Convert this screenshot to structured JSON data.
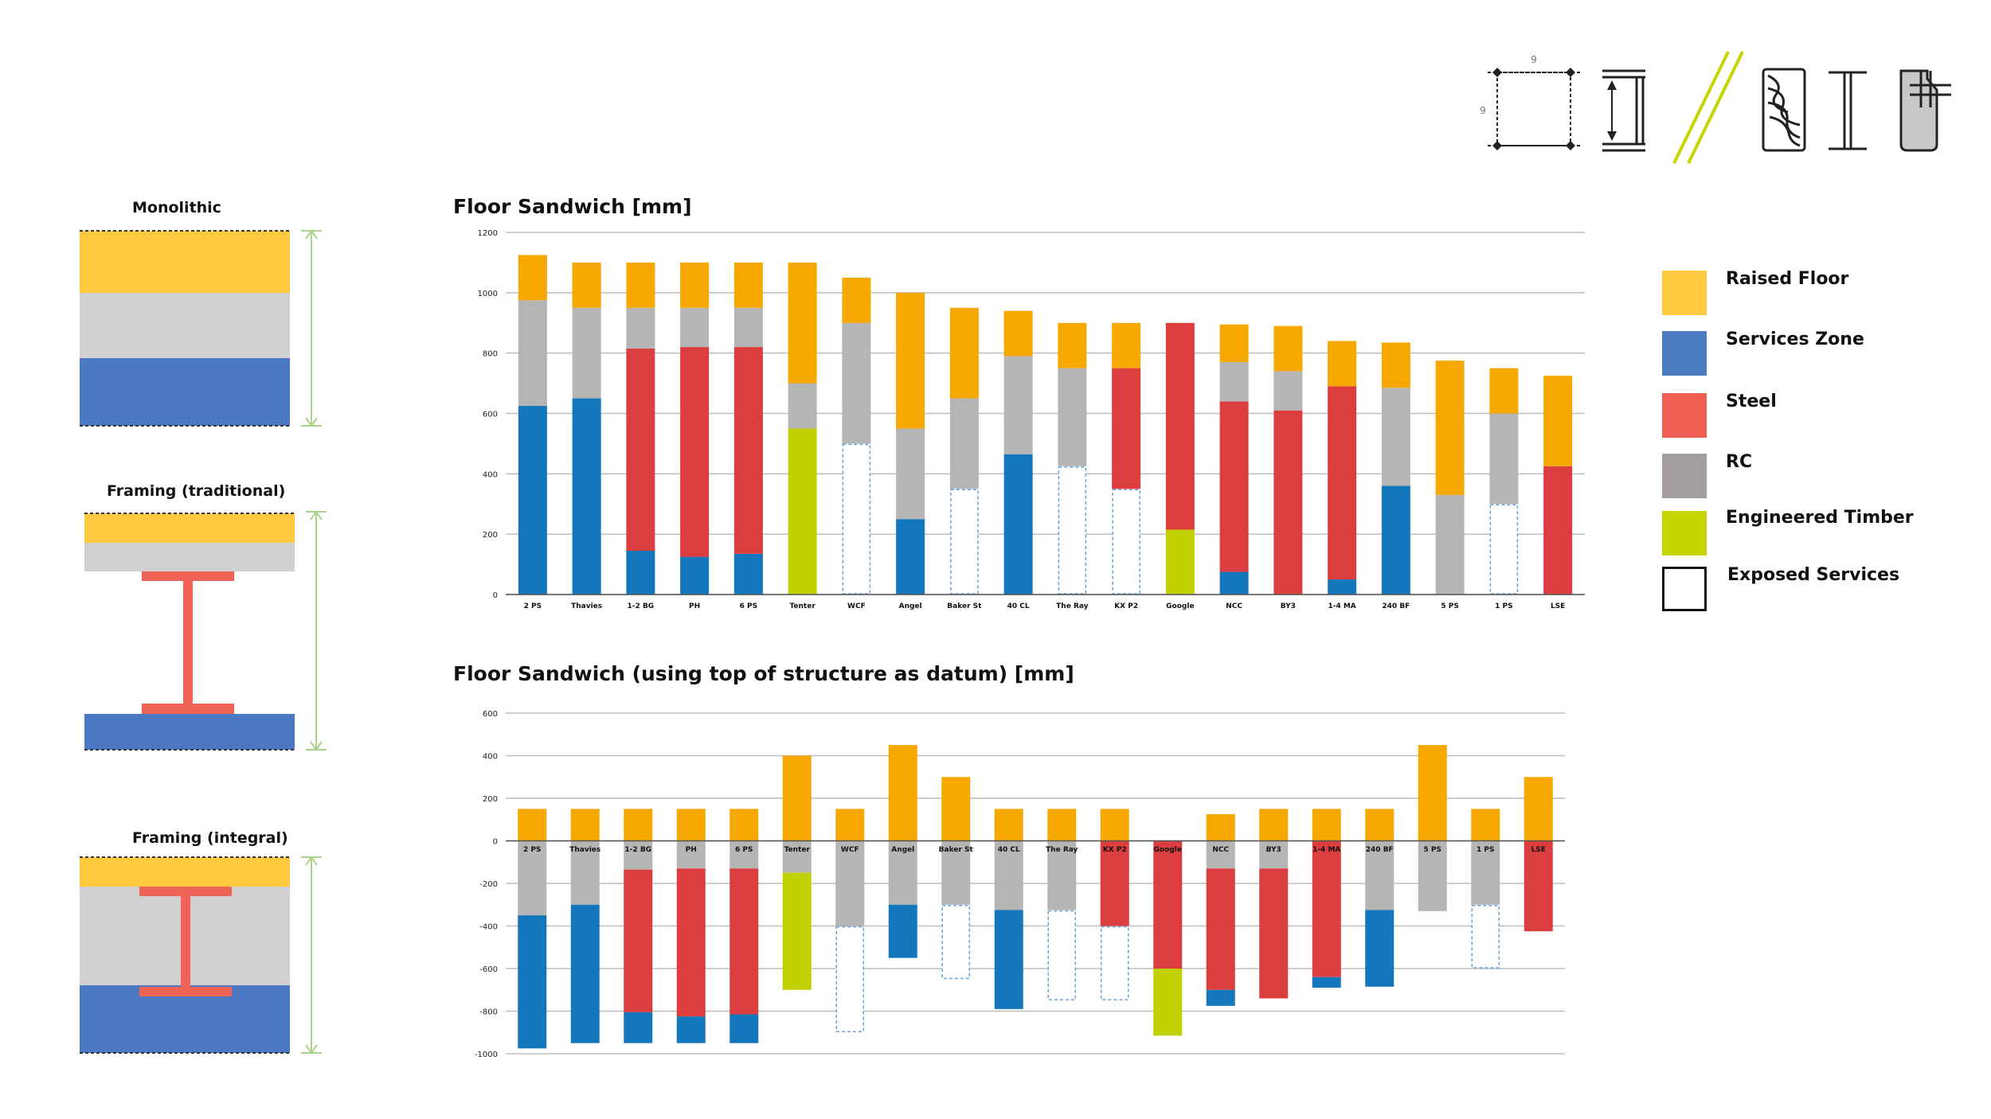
{
  "colors": {
    "raised_floor": "#f6a800",
    "services": "#1577bb",
    "steel": "#dc3d3f",
    "rc": "#b5b5b5",
    "timber": "#c1d000",
    "exposed_stroke": "#6aa0d8",
    "grid": "#bdbdbd",
    "legend_raised": "#fdc93e",
    "legend_services": "#4a7cc1",
    "legend_steel": "#ee5e52",
    "legend_rc": "#a39d9e",
    "legend_timber": "#c6d400",
    "diag_yellow": "#fdc93e",
    "diag_grey": "#d0d0d0",
    "diag_blue": "#4a78c2",
    "diag_beam": "#ef6456",
    "diag_dim": "#a9d38a"
  },
  "diagrams": [
    {
      "title": "Monolithic",
      "icon": "monolithic-section-icon"
    },
    {
      "title": "Framing (traditional)",
      "icon": "traditional-framing-section-icon"
    },
    {
      "title": "Framing (integral)",
      "icon": "integral-framing-section-icon"
    }
  ],
  "legend": [
    {
      "key": "raised_floor",
      "label": "Raised Floor"
    },
    {
      "key": "services",
      "label": "Services Zone"
    },
    {
      "key": "steel",
      "label": "Steel"
    },
    {
      "key": "rc",
      "label": "RC"
    },
    {
      "key": "timber",
      "label": "Engineered Timber"
    },
    {
      "key": "exposed",
      "label": "Exposed Services"
    }
  ],
  "header_icons": {
    "grid_label_top": "9",
    "grid_label_left": "9",
    "names": [
      "column-grid-icon",
      "beam-depth-icon",
      "double-slash-icon",
      "timber-grain-icon",
      "steel-section-icon",
      "concrete-rebar-icon"
    ]
  },
  "chart_data": [
    {
      "type": "bar",
      "stacked": true,
      "title": "Floor Sandwich [mm]",
      "ylim": [
        0,
        1200
      ],
      "yticks": [
        0,
        200,
        400,
        600,
        800,
        1000,
        1200
      ],
      "categories": [
        "2 PS",
        "Thavies",
        "1-2 BG",
        "PH",
        "6 PS",
        "Tenter",
        "WCF",
        "Angel",
        "Baker St",
        "40 CL",
        "The Ray",
        "KX P2",
        "Google",
        "NCC",
        "BY3",
        "1-4 MA",
        "240 BF",
        "5 PS",
        "1 PS",
        "LSE"
      ],
      "bars": [
        [
          {
            "t": "services",
            "v": [
              0,
              625
            ]
          },
          {
            "t": "rc",
            "v": [
              625,
              975
            ]
          },
          {
            "t": "raised_floor",
            "v": [
              975,
              1125
            ]
          }
        ],
        [
          {
            "t": "services",
            "v": [
              0,
              650
            ]
          },
          {
            "t": "rc",
            "v": [
              650,
              950
            ]
          },
          {
            "t": "raised_floor",
            "v": [
              950,
              1100
            ]
          }
        ],
        [
          {
            "t": "services",
            "v": [
              0,
              145
            ]
          },
          {
            "t": "steel",
            "v": [
              145,
              815
            ]
          },
          {
            "t": "rc",
            "v": [
              815,
              950
            ]
          },
          {
            "t": "raised_floor",
            "v": [
              950,
              1100
            ]
          }
        ],
        [
          {
            "t": "services",
            "v": [
              0,
              125
            ]
          },
          {
            "t": "steel",
            "v": [
              125,
              820
            ]
          },
          {
            "t": "rc",
            "v": [
              820,
              950
            ]
          },
          {
            "t": "raised_floor",
            "v": [
              950,
              1100
            ]
          }
        ],
        [
          {
            "t": "services",
            "v": [
              0,
              135
            ]
          },
          {
            "t": "steel",
            "v": [
              135,
              820
            ]
          },
          {
            "t": "rc",
            "v": [
              820,
              950
            ]
          },
          {
            "t": "raised_floor",
            "v": [
              950,
              1100
            ]
          }
        ],
        [
          {
            "t": "timber",
            "v": [
              0,
              550
            ]
          },
          {
            "t": "rc",
            "v": [
              550,
              700
            ]
          },
          {
            "t": "raised_floor",
            "v": [
              700,
              1100
            ]
          }
        ],
        [
          {
            "t": "exposed",
            "v": [
              0,
              500
            ]
          },
          {
            "t": "rc",
            "v": [
              500,
              900
            ]
          },
          {
            "t": "raised_floor",
            "v": [
              900,
              1050
            ]
          }
        ],
        [
          {
            "t": "services",
            "v": [
              0,
              250
            ]
          },
          {
            "t": "rc",
            "v": [
              250,
              550
            ]
          },
          {
            "t": "raised_floor",
            "v": [
              550,
              1000
            ]
          }
        ],
        [
          {
            "t": "exposed",
            "v": [
              0,
              350
            ]
          },
          {
            "t": "rc",
            "v": [
              350,
              650
            ]
          },
          {
            "t": "raised_floor",
            "v": [
              650,
              950
            ]
          }
        ],
        [
          {
            "t": "services",
            "v": [
              0,
              465
            ]
          },
          {
            "t": "rc",
            "v": [
              465,
              790
            ]
          },
          {
            "t": "raised_floor",
            "v": [
              790,
              940
            ]
          }
        ],
        [
          {
            "t": "exposed",
            "v": [
              0,
              425
            ]
          },
          {
            "t": "rc",
            "v": [
              425,
              750
            ]
          },
          {
            "t": "raised_floor",
            "v": [
              750,
              900
            ]
          }
        ],
        [
          {
            "t": "exposed",
            "v": [
              0,
              350
            ]
          },
          {
            "t": "steel",
            "v": [
              350,
              750
            ]
          },
          {
            "t": "raised_floor",
            "v": [
              750,
              900
            ]
          }
        ],
        [
          {
            "t": "timber",
            "v": [
              0,
              215
            ]
          },
          {
            "t": "steel",
            "v": [
              215,
              900
            ]
          }
        ],
        [
          {
            "t": "services",
            "v": [
              0,
              75
            ]
          },
          {
            "t": "steel",
            "v": [
              75,
              640
            ]
          },
          {
            "t": "rc",
            "v": [
              640,
              770
            ]
          },
          {
            "t": "raised_floor",
            "v": [
              770,
              895
            ]
          }
        ],
        [
          {
            "t": "steel",
            "v": [
              0,
              610
            ]
          },
          {
            "t": "rc",
            "v": [
              610,
              740
            ]
          },
          {
            "t": "raised_floor",
            "v": [
              740,
              890
            ]
          }
        ],
        [
          {
            "t": "services",
            "v": [
              0,
              50
            ]
          },
          {
            "t": "steel",
            "v": [
              50,
              690
            ]
          },
          {
            "t": "raised_floor",
            "v": [
              690,
              840
            ]
          }
        ],
        [
          {
            "t": "services",
            "v": [
              0,
              360
            ]
          },
          {
            "t": "rc",
            "v": [
              360,
              685
            ]
          },
          {
            "t": "raised_floor",
            "v": [
              685,
              835
            ]
          }
        ],
        [
          {
            "t": "rc",
            "v": [
              0,
              330
            ]
          },
          {
            "t": "raised_floor",
            "v": [
              330,
              775
            ]
          }
        ],
        [
          {
            "t": "exposed",
            "v": [
              0,
              300
            ]
          },
          {
            "t": "rc",
            "v": [
              300,
              600
            ]
          },
          {
            "t": "raised_floor",
            "v": [
              600,
              750
            ]
          }
        ],
        [
          {
            "t": "steel",
            "v": [
              0,
              425
            ]
          },
          {
            "t": "raised_floor",
            "v": [
              425,
              725
            ]
          }
        ]
      ]
    },
    {
      "type": "bar",
      "stacked": true,
      "title": "Floor Sandwich (using top of structure as datum) [mm]",
      "ylim": [
        -1000,
        600
      ],
      "yticks": [
        -1000,
        -800,
        -600,
        -400,
        -200,
        0,
        200,
        400,
        600
      ],
      "categories": [
        "2 PS",
        "Thavies",
        "1-2 BG",
        "PH",
        "6 PS",
        "Tenter",
        "WCF",
        "Angel",
        "Baker St",
        "40 CL",
        "The Ray",
        "KX P2",
        "Google",
        "NCC",
        "BY3",
        "1-4 MA",
        "240 BF",
        "5 PS",
        "1 PS",
        "LSE"
      ],
      "bars": [
        [
          {
            "t": "raised_floor",
            "v": [
              0,
              150
            ]
          },
          {
            "t": "rc",
            "v": [
              -350,
              0
            ]
          },
          {
            "t": "services",
            "v": [
              -975,
              -350
            ]
          }
        ],
        [
          {
            "t": "raised_floor",
            "v": [
              0,
              150
            ]
          },
          {
            "t": "rc",
            "v": [
              -300,
              0
            ]
          },
          {
            "t": "services",
            "v": [
              -950,
              -300
            ]
          }
        ],
        [
          {
            "t": "raised_floor",
            "v": [
              0,
              150
            ]
          },
          {
            "t": "rc",
            "v": [
              -135,
              0
            ]
          },
          {
            "t": "steel",
            "v": [
              -805,
              -135
            ]
          },
          {
            "t": "services",
            "v": [
              -950,
              -805
            ]
          }
        ],
        [
          {
            "t": "raised_floor",
            "v": [
              0,
              150
            ]
          },
          {
            "t": "rc",
            "v": [
              -130,
              0
            ]
          },
          {
            "t": "steel",
            "v": [
              -825,
              -130
            ]
          },
          {
            "t": "services",
            "v": [
              -950,
              -825
            ]
          }
        ],
        [
          {
            "t": "raised_floor",
            "v": [
              0,
              150
            ]
          },
          {
            "t": "rc",
            "v": [
              -130,
              0
            ]
          },
          {
            "t": "steel",
            "v": [
              -815,
              -130
            ]
          },
          {
            "t": "services",
            "v": [
              -950,
              -815
            ]
          }
        ],
        [
          {
            "t": "raised_floor",
            "v": [
              0,
              400
            ]
          },
          {
            "t": "rc",
            "v": [
              -150,
              0
            ]
          },
          {
            "t": "timber",
            "v": [
              -700,
              -150
            ]
          }
        ],
        [
          {
            "t": "raised_floor",
            "v": [
              0,
              150
            ]
          },
          {
            "t": "rc",
            "v": [
              -400,
              0
            ]
          },
          {
            "t": "exposed",
            "v": [
              -900,
              -400
            ]
          }
        ],
        [
          {
            "t": "raised_floor",
            "v": [
              0,
              450
            ]
          },
          {
            "t": "rc",
            "v": [
              -300,
              0
            ]
          },
          {
            "t": "services",
            "v": [
              -550,
              -300
            ]
          }
        ],
        [
          {
            "t": "raised_floor",
            "v": [
              0,
              300
            ]
          },
          {
            "t": "rc",
            "v": [
              -300,
              0
            ]
          },
          {
            "t": "exposed",
            "v": [
              -650,
              -300
            ]
          }
        ],
        [
          {
            "t": "raised_floor",
            "v": [
              0,
              150
            ]
          },
          {
            "t": "rc",
            "v": [
              -325,
              0
            ]
          },
          {
            "t": "services",
            "v": [
              -790,
              -325
            ]
          }
        ],
        [
          {
            "t": "raised_floor",
            "v": [
              0,
              150
            ]
          },
          {
            "t": "rc",
            "v": [
              -325,
              0
            ]
          },
          {
            "t": "exposed",
            "v": [
              -750,
              -325
            ]
          }
        ],
        [
          {
            "t": "raised_floor",
            "v": [
              0,
              150
            ]
          },
          {
            "t": "steel",
            "v": [
              -400,
              0
            ]
          },
          {
            "t": "exposed",
            "v": [
              -750,
              -400
            ]
          }
        ],
        [
          {
            "t": "steel",
            "v": [
              -600,
              0
            ]
          },
          {
            "t": "timber",
            "v": [
              -915,
              -600
            ]
          }
        ],
        [
          {
            "t": "raised_floor",
            "v": [
              0,
              125
            ]
          },
          {
            "t": "rc",
            "v": [
              -130,
              0
            ]
          },
          {
            "t": "steel",
            "v": [
              -700,
              -130
            ]
          },
          {
            "t": "services",
            "v": [
              -775,
              -700
            ]
          }
        ],
        [
          {
            "t": "raised_floor",
            "v": [
              0,
              150
            ]
          },
          {
            "t": "rc",
            "v": [
              -130,
              0
            ]
          },
          {
            "t": "steel",
            "v": [
              -740,
              -130
            ]
          }
        ],
        [
          {
            "t": "raised_floor",
            "v": [
              0,
              150
            ]
          },
          {
            "t": "steel",
            "v": [
              -640,
              0
            ]
          },
          {
            "t": "services",
            "v": [
              -690,
              -640
            ]
          }
        ],
        [
          {
            "t": "raised_floor",
            "v": [
              0,
              150
            ]
          },
          {
            "t": "rc",
            "v": [
              -325,
              0
            ]
          },
          {
            "t": "services",
            "v": [
              -685,
              -325
            ]
          }
        ],
        [
          {
            "t": "raised_floor",
            "v": [
              0,
              450
            ]
          },
          {
            "t": "rc",
            "v": [
              -330,
              0
            ]
          }
        ],
        [
          {
            "t": "raised_floor",
            "v": [
              0,
              150
            ]
          },
          {
            "t": "rc",
            "v": [
              -300,
              0
            ]
          },
          {
            "t": "exposed",
            "v": [
              -600,
              -300
            ]
          }
        ],
        [
          {
            "t": "raised_floor",
            "v": [
              0,
              300
            ]
          },
          {
            "t": "steel",
            "v": [
              -425,
              0
            ]
          }
        ]
      ]
    }
  ]
}
